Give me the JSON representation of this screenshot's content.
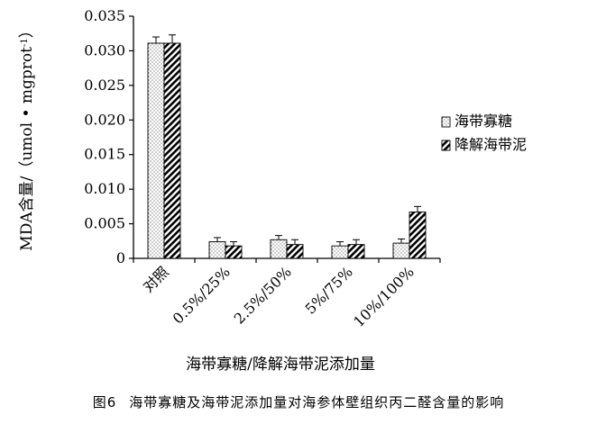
{
  "chart_data": {
    "type": "bar",
    "title": "",
    "ylabel": "MDA含量/（umol • mgprot",
    "ylabel_sup": "-1",
    "ylabel_close": "）",
    "xlabel": "海带寡糖/降解海带泥添加量",
    "categories": [
      "对照",
      "0.5%/25%",
      "2.5%/50%",
      "5%/75%",
      "10%/100%"
    ],
    "ylim": [
      0,
      0.035
    ],
    "yticks": [
      0,
      0.005,
      0.01,
      0.015,
      0.02,
      0.025,
      0.03,
      0.035
    ],
    "ytick_labels": [
      "0",
      "0.005",
      "0.010",
      "0.015",
      "0.020",
      "0.025",
      "0.030",
      "0.035"
    ],
    "grid": false,
    "legend_position": "right",
    "series": [
      {
        "name": "海带寡糖",
        "pattern": "dots",
        "color": "#ffffff",
        "values": [
          0.0311,
          0.0024,
          0.0027,
          0.0018,
          0.0022
        ],
        "errors": [
          0.0009,
          0.0006,
          0.0006,
          0.0006,
          0.0006
        ]
      },
      {
        "name": "降解海带泥",
        "pattern": "diagonal",
        "color": "#000000",
        "values": [
          0.0311,
          0.0018,
          0.002,
          0.002,
          0.0067
        ],
        "errors": [
          0.0012,
          0.0006,
          0.0007,
          0.0007,
          0.0008
        ]
      }
    ]
  },
  "caption": {
    "number": "图6",
    "text": "海带寡糖及海带泥添加量对海参体壁组织丙二醛含量的影响"
  }
}
